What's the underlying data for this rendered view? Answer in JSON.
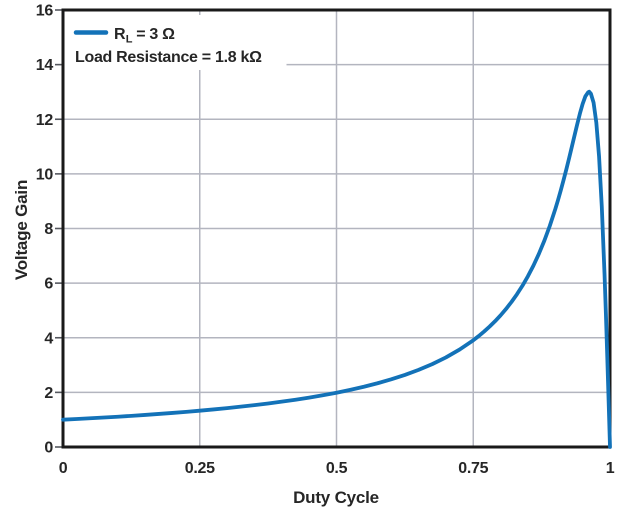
{
  "colors": {
    "curve": "#1372b8",
    "grid": "#b3b5bf",
    "frame": "#1a1a1a",
    "text": "#262626",
    "tick": "#55585f",
    "background": "#ffffff"
  },
  "legend": {
    "series_label": {
      "base": "R",
      "sub": "L",
      "rest": "= 3 Ω"
    },
    "note": "Load Resistance = 1.8 kΩ"
  },
  "chart_data": {
    "type": "line",
    "title": "",
    "xlabel": "Duty Cycle",
    "ylabel": "Voltage Gain",
    "xlim": [
      0,
      1
    ],
    "ylim": [
      0,
      16
    ],
    "x_tick_values": [
      0,
      0.25,
      0.5,
      0.75,
      1
    ],
    "x_tick_labels": [
      "0",
      "0.25",
      "0.5",
      "0.75",
      "1"
    ],
    "y_tick_values": [
      0,
      2,
      4,
      6,
      8,
      10,
      12,
      14,
      16
    ],
    "y_tick_labels": [
      "0",
      "2",
      "4",
      "6",
      "8",
      "10",
      "12",
      "14",
      "16"
    ],
    "grid": true,
    "legend_position": "top-left",
    "annotations": [
      "Load Resistance = 1.8 kΩ"
    ],
    "series": [
      {
        "name": "RL = 3 Ω",
        "color": "#1372b8",
        "points": [
          [
            0,
            1.0
          ],
          [
            0.025,
            1.024
          ],
          [
            0.05,
            1.051
          ],
          [
            0.075,
            1.079
          ],
          [
            0.1,
            1.109
          ],
          [
            0.125,
            1.141
          ],
          [
            0.15,
            1.174
          ],
          [
            0.175,
            1.21
          ],
          [
            0.2,
            1.247
          ],
          [
            0.225,
            1.287
          ],
          [
            0.25,
            1.33
          ],
          [
            0.275,
            1.375
          ],
          [
            0.3,
            1.424
          ],
          [
            0.325,
            1.477
          ],
          [
            0.35,
            1.533
          ],
          [
            0.375,
            1.594
          ],
          [
            0.4,
            1.66
          ],
          [
            0.425,
            1.731
          ],
          [
            0.45,
            1.809
          ],
          [
            0.475,
            1.895
          ],
          [
            0.5,
            1.988
          ],
          [
            0.525,
            2.092
          ],
          [
            0.55,
            2.206
          ],
          [
            0.575,
            2.334
          ],
          [
            0.6,
            2.477
          ],
          [
            0.625,
            2.639
          ],
          [
            0.65,
            2.823
          ],
          [
            0.675,
            3.034
          ],
          [
            0.7,
            3.279
          ],
          [
            0.725,
            3.567
          ],
          [
            0.75,
            3.907
          ],
          [
            0.76,
            4.062
          ],
          [
            0.77,
            4.23
          ],
          [
            0.78,
            4.411
          ],
          [
            0.79,
            4.607
          ],
          [
            0.8,
            4.822
          ],
          [
            0.81,
            5.056
          ],
          [
            0.82,
            5.313
          ],
          [
            0.83,
            5.596
          ],
          [
            0.84,
            5.908
          ],
          [
            0.85,
            6.255
          ],
          [
            0.86,
            6.641
          ],
          [
            0.87,
            7.073
          ],
          [
            0.88,
            7.557
          ],
          [
            0.89,
            8.1
          ],
          [
            0.9,
            8.711
          ],
          [
            0.905,
            9.043
          ],
          [
            0.91,
            9.395
          ],
          [
            0.915,
            9.765
          ],
          [
            0.92,
            10.152
          ],
          [
            0.925,
            10.556
          ],
          [
            0.93,
            10.972
          ],
          [
            0.935,
            11.393
          ],
          [
            0.94,
            11.811
          ],
          [
            0.945,
            12.209
          ],
          [
            0.95,
            12.563
          ],
          [
            0.955,
            12.839
          ],
          [
            0.96,
            12.987
          ],
          [
            0.962,
            13.007
          ],
          [
            0.965,
            12.939
          ],
          [
            0.97,
            12.605
          ],
          [
            0.975,
            11.876
          ],
          [
            0.98,
            10.638
          ],
          [
            0.985,
            8.798
          ],
          [
            0.99,
            6.329
          ],
          [
            0.9925,
            4.882
          ],
          [
            0.995,
            3.322
          ],
          [
            0.9975,
            1.682
          ],
          [
            1.0,
            0.0
          ]
        ]
      }
    ]
  }
}
